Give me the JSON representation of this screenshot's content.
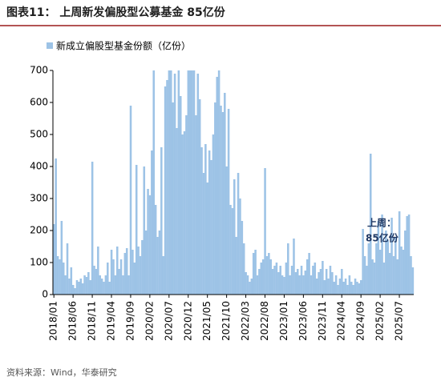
{
  "chart_data": {
    "type": "bar",
    "title": "图表11： 上周新发偏股型公募基金 85亿份",
    "legend_label": "新成立偏股型基金份额（亿份）",
    "source": "资料来源：Wind，华泰研究",
    "annotation": [
      "上周：",
      "85亿份"
    ],
    "color": "#9dc3e6",
    "ylim": [
      0,
      700
    ],
    "yticks": [
      0,
      100,
      200,
      300,
      400,
      500,
      600,
      700
    ],
    "categories": [
      "2018/01",
      null,
      null,
      null,
      null,
      null,
      null,
      null,
      null,
      null,
      "2018/06",
      null,
      null,
      null,
      null,
      null,
      null,
      null,
      null,
      null,
      "2018/11",
      null,
      null,
      null,
      null,
      null,
      null,
      null,
      null,
      null,
      "2019/04",
      null,
      null,
      null,
      null,
      null,
      null,
      null,
      null,
      null,
      "2019/09",
      null,
      null,
      null,
      null,
      null,
      null,
      null,
      null,
      null,
      "2020/02",
      null,
      null,
      null,
      null,
      null,
      null,
      null,
      null,
      null,
      "2020/07",
      null,
      null,
      null,
      null,
      null,
      null,
      null,
      null,
      null,
      "2020/12",
      null,
      null,
      null,
      null,
      null,
      null,
      null,
      null,
      null,
      "2021/05",
      null,
      null,
      null,
      null,
      null,
      null,
      null,
      null,
      null,
      "2021/10",
      null,
      null,
      null,
      null,
      null,
      null,
      null,
      null,
      null,
      "2022/03",
      null,
      null,
      null,
      null,
      null,
      null,
      null,
      null,
      null,
      "2022/08",
      null,
      null,
      null,
      null,
      null,
      null,
      null,
      null,
      null,
      "2023/01",
      null,
      null,
      null,
      null,
      null,
      null,
      null,
      null,
      null,
      "2023/06",
      null,
      null,
      null,
      null,
      null,
      null,
      null,
      null,
      null,
      "2023/11",
      null,
      null,
      null,
      null,
      null,
      null,
      null,
      null,
      null,
      "2024/04",
      null,
      null,
      null,
      null,
      null,
      null,
      null,
      null,
      null,
      "2024/09",
      null,
      null,
      null,
      null,
      null,
      null,
      null,
      null,
      null,
      "2025/02",
      null,
      null,
      null,
      null,
      null,
      null,
      null,
      null,
      null,
      "2025/07",
      null,
      null,
      null,
      null,
      null,
      null,
      null
    ],
    "values": [
      220,
      425,
      120,
      110,
      230,
      100,
      60,
      160,
      50,
      85,
      30,
      20,
      45,
      40,
      50,
      35,
      60,
      55,
      70,
      45,
      415,
      90,
      80,
      150,
      60,
      50,
      40,
      60,
      100,
      40,
      140,
      110,
      60,
      150,
      80,
      110,
      60,
      130,
      145,
      60,
      590,
      140,
      100,
      405,
      150,
      120,
      170,
      400,
      200,
      330,
      310,
      450,
      700,
      280,
      180,
      200,
      460,
      120,
      650,
      670,
      700,
      700,
      600,
      690,
      520,
      700,
      620,
      500,
      510,
      560,
      700,
      700,
      700,
      700,
      560,
      690,
      610,
      460,
      380,
      470,
      350,
      450,
      420,
      500,
      600,
      680,
      700,
      590,
      570,
      630,
      400,
      580,
      280,
      270,
      360,
      180,
      380,
      300,
      230,
      160,
      70,
      60,
      40,
      50,
      130,
      140,
      60,
      80,
      100,
      110,
      395,
      120,
      130,
      110,
      80,
      90,
      100,
      70,
      90,
      60,
      55,
      100,
      160,
      60,
      90,
      175,
      70,
      80,
      60,
      90,
      60,
      75,
      110,
      130,
      60,
      90,
      100,
      50,
      70,
      80,
      105,
      45,
      80,
      50,
      90,
      70,
      40,
      60,
      30,
      50,
      80,
      40,
      50,
      30,
      60,
      40,
      30,
      50,
      40,
      35,
      45,
      205,
      120,
      90,
      160,
      440,
      110,
      100,
      160,
      230,
      140,
      250,
      100,
      200,
      170,
      130,
      240,
      120,
      180,
      110,
      260,
      150,
      140,
      200,
      245,
      250,
      120,
      85
    ]
  }
}
